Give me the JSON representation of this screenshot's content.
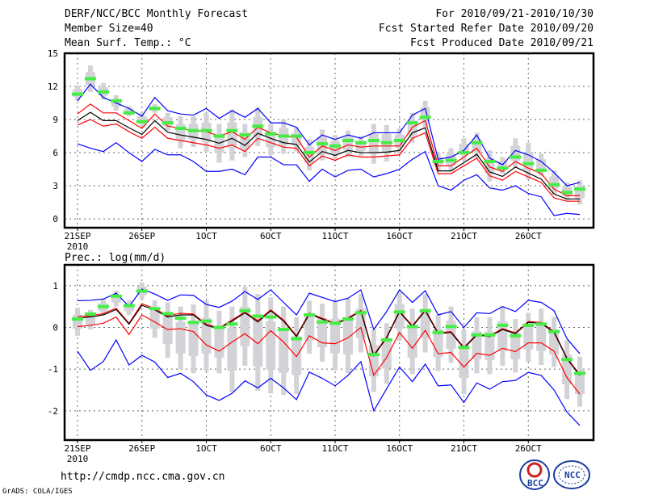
{
  "header": {
    "title": "DERF/NCC/BCC Monthly Forecast",
    "member": "Member Size=40",
    "variable": "Mean Surf. Temp.: °C",
    "period": "For 2010/09/21-2010/10/30",
    "refer": "Fcst Started Refer Date 2010/09/20",
    "produced": "Fcst Produced Date 2010/09/21"
  },
  "footer": {
    "url": "http://cmdp.ncc.cma.gov.cn",
    "grads": "GrADS: COLA/IGES",
    "logo1": "BCC",
    "logo2": "NCC"
  },
  "colors": {
    "ensemble_range": "#0000ff",
    "spread": "#ff0000",
    "mean": "#000000",
    "box": "#d3d3d7",
    "marker": "#44ee44",
    "grid": "#666666"
  },
  "chart_data": [
    {
      "type": "line",
      "title": "Mean Surf. Temp.: °C",
      "ylabel": "°C",
      "ylim": [
        -0.8,
        15
      ],
      "yticks": [
        0,
        3,
        6,
        9,
        12,
        15
      ],
      "xticks": [
        "21SEP",
        "26SEP",
        "1OCT",
        "6OCT",
        "11OCT",
        "16OCT",
        "21OCT",
        "26OCT"
      ],
      "xtick_sub": "2010",
      "grid": true,
      "mean": [
        8.9,
        9.65,
        8.9,
        8.9,
        8.25,
        7.65,
        8.9,
        7.85,
        7.6,
        7.4,
        7.2,
        6.85,
        7.3,
        6.65,
        7.75,
        7.3,
        6.9,
        6.75,
        5.15,
        6.1,
        5.75,
        6.2,
        6.0,
        6.0,
        6.05,
        6.2,
        7.8,
        8.25,
        4.35,
        4.35,
        5.1,
        5.85,
        4.25,
        3.85,
        4.7,
        4.15,
        3.6,
        2.25,
        1.8,
        1.8
      ],
      "upper_red": [
        9.5,
        10.4,
        9.6,
        9.6,
        8.9,
        8.2,
        9.5,
        8.4,
        8.2,
        8.0,
        7.9,
        7.5,
        7.9,
        7.2,
        8.3,
        7.8,
        7.5,
        7.4,
        5.6,
        6.6,
        6.2,
        6.7,
        6.5,
        6.6,
        6.6,
        6.6,
        8.3,
        8.9,
        4.8,
        4.8,
        5.6,
        6.4,
        4.7,
        4.3,
        5.2,
        4.6,
        4.1,
        2.7,
        2.1,
        2.1
      ],
      "lower_red": [
        8.5,
        9.0,
        8.4,
        8.6,
        7.9,
        7.3,
        8.3,
        7.3,
        7.1,
        6.9,
        6.7,
        6.4,
        6.7,
        6.1,
        7.3,
        6.9,
        6.5,
        6.4,
        4.8,
        5.7,
        5.3,
        5.8,
        5.6,
        5.6,
        5.7,
        5.8,
        7.3,
        7.8,
        4.1,
        4.1,
        4.8,
        5.5,
        3.9,
        3.5,
        4.3,
        3.8,
        3.3,
        1.9,
        1.6,
        1.6
      ],
      "upper_blue": [
        10.7,
        12.2,
        11.0,
        10.5,
        10.0,
        9.3,
        11.0,
        9.8,
        9.5,
        9.4,
        10.0,
        9.1,
        9.8,
        9.2,
        10.0,
        8.7,
        8.7,
        8.3,
        6.7,
        7.6,
        7.2,
        7.6,
        7.3,
        7.8,
        7.8,
        7.8,
        9.4,
        10.0,
        5.4,
        5.6,
        6.2,
        7.6,
        5.5,
        4.9,
        6.2,
        5.8,
        5.2,
        4.2,
        3.0,
        3.3
      ],
      "lower_blue": [
        6.8,
        6.4,
        6.1,
        6.9,
        6.0,
        5.2,
        6.3,
        5.8,
        5.8,
        5.2,
        4.3,
        4.3,
        4.5,
        4.0,
        5.6,
        5.6,
        4.9,
        4.9,
        3.4,
        4.5,
        3.8,
        4.4,
        4.5,
        3.8,
        4.1,
        4.5,
        5.4,
        6.1,
        3.0,
        2.6,
        3.5,
        4.0,
        2.8,
        2.6,
        3.0,
        2.3,
        2.0,
        0.3,
        0.5,
        0.4
      ],
      "marker": [
        11.3,
        12.7,
        11.5,
        10.7,
        9.6,
        8.8,
        10.0,
        8.7,
        8.2,
        8.0,
        8.0,
        7.5,
        8.0,
        7.6,
        8.4,
        7.7,
        7.5,
        7.5,
        6.0,
        6.8,
        6.6,
        7.1,
        6.9,
        7.1,
        6.9,
        7.1,
        8.7,
        9.2,
        5.2,
        5.3,
        6.0,
        6.9,
        5.2,
        4.6,
        5.6,
        5.0,
        4.4,
        3.1,
        2.4,
        2.7
      ],
      "box_hi": [
        12.1,
        13.9,
        12.3,
        11.2,
        10.2,
        9.6,
        10.4,
        9.6,
        9.3,
        9.3,
        9.6,
        8.6,
        9.9,
        8.6,
        10.1,
        8.6,
        9.0,
        8.3,
        7.2,
        8.1,
        7.6,
        8.0,
        7.5,
        8.6,
        8.5,
        8.2,
        9.6,
        10.7,
        6.0,
        6.4,
        7.3,
        7.8,
        6.2,
        5.6,
        7.3,
        6.9,
        5.9,
        4.4,
        3.3,
        3.5
      ],
      "box_lo": [
        10.7,
        11.5,
        10.8,
        9.8,
        9.3,
        8.4,
        9.6,
        8.0,
        6.4,
        6.5,
        6.1,
        5.1,
        5.3,
        5.6,
        6.6,
        5.8,
        5.9,
        6.1,
        4.4,
        5.3,
        5.4,
        5.6,
        5.7,
        5.0,
        5.2,
        5.9,
        6.9,
        8.3,
        4.4,
        4.3,
        5.3,
        5.5,
        3.4,
        4.1,
        4.6,
        3.6,
        3.9,
        2.2,
        1.7,
        1.3
      ]
    },
    {
      "type": "line",
      "title": "Prec.: log(mm/d)",
      "ylabel": "log(mm/d)",
      "ylim": [
        -2.7,
        1.5
      ],
      "yticks": [
        -2,
        -1,
        0,
        1
      ],
      "xticks": [
        "21SEP",
        "26SEP",
        "1OCT",
        "6OCT",
        "11OCT",
        "16OCT",
        "21OCT",
        "26OCT"
      ],
      "xtick_sub": "2010",
      "grid": true,
      "mean": [
        0.22,
        0.25,
        0.3,
        0.43,
        0.08,
        0.53,
        0.42,
        0.25,
        0.3,
        0.3,
        0.05,
        -0.03,
        0.15,
        0.35,
        0.13,
        0.4,
        0.15,
        -0.22,
        0.32,
        0.2,
        0.08,
        0.21,
        0.39,
        -0.68,
        -0.25,
        0.37,
        0.02,
        0.4,
        -0.15,
        -0.12,
        -0.5,
        -0.18,
        -0.22,
        -0.05,
        -0.15,
        0.12,
        0.1,
        -0.12,
        -0.75,
        -1.15
      ],
      "upper_red": [
        0.26,
        0.28,
        0.33,
        0.46,
        0.1,
        0.57,
        0.45,
        0.28,
        0.34,
        0.32,
        0.08,
        -0.01,
        0.18,
        0.37,
        0.16,
        0.42,
        0.18,
        -0.2,
        0.34,
        0.22,
        0.1,
        0.23,
        0.41,
        -0.66,
        -0.23,
        0.39,
        0.04,
        0.42,
        -0.13,
        -0.1,
        -0.48,
        -0.16,
        -0.2,
        -0.03,
        -0.13,
        0.14,
        0.12,
        -0.1,
        -0.73,
        -1.13
      ],
      "lower_red": [
        0.02,
        0.05,
        0.1,
        0.25,
        -0.17,
        0.3,
        0.13,
        -0.05,
        -0.03,
        -0.1,
        -0.42,
        -0.57,
        -0.35,
        -0.15,
        -0.39,
        -0.08,
        -0.35,
        -0.7,
        -0.2,
        -0.37,
        -0.39,
        -0.25,
        0.0,
        -1.15,
        -0.72,
        -0.12,
        -0.5,
        -0.07,
        -0.63,
        -0.6,
        -0.95,
        -0.62,
        -0.67,
        -0.5,
        -0.58,
        -0.37,
        -0.37,
        -0.57,
        -1.2,
        -1.6
      ],
      "upper_blue": [
        0.64,
        0.65,
        0.68,
        0.82,
        0.5,
        0.92,
        0.8,
        0.65,
        0.78,
        0.77,
        0.55,
        0.48,
        0.63,
        0.86,
        0.67,
        0.9,
        0.6,
        0.3,
        0.82,
        0.72,
        0.62,
        0.7,
        0.9,
        -0.05,
        0.38,
        0.9,
        0.6,
        0.88,
        0.3,
        0.38,
        0.0,
        0.35,
        0.33,
        0.5,
        0.38,
        0.65,
        0.6,
        0.4,
        -0.27,
        -0.63
      ],
      "lower_blue": [
        -0.57,
        -1.03,
        -0.82,
        -0.3,
        -0.9,
        -0.67,
        -0.83,
        -1.2,
        -1.1,
        -1.3,
        -1.62,
        -1.75,
        -1.58,
        -1.28,
        -1.45,
        -1.22,
        -1.45,
        -1.73,
        -1.07,
        -1.22,
        -1.4,
        -1.15,
        -0.82,
        -2.0,
        -1.47,
        -0.95,
        -1.3,
        -0.88,
        -1.4,
        -1.38,
        -1.8,
        -1.33,
        -1.48,
        -1.3,
        -1.27,
        -1.08,
        -1.15,
        -1.5,
        -2.03,
        -2.35
      ],
      "marker": [
        0.2,
        0.32,
        0.5,
        0.75,
        0.52,
        0.87,
        0.45,
        0.33,
        0.22,
        0.12,
        0.15,
        0.0,
        0.08,
        0.4,
        0.27,
        0.25,
        -0.05,
        -0.27,
        0.3,
        0.13,
        0.1,
        0.2,
        0.35,
        -0.65,
        -0.3,
        0.37,
        0.02,
        0.4,
        -0.12,
        0.02,
        -0.48,
        -0.18,
        -0.18,
        0.05,
        -0.2,
        0.05,
        0.08,
        -0.1,
        -0.77,
        -1.1
      ],
      "box_hi": [
        0.47,
        0.42,
        0.67,
        0.88,
        0.65,
        1.08,
        0.65,
        0.6,
        0.5,
        0.55,
        0.65,
        0.4,
        0.5,
        0.97,
        0.8,
        0.72,
        0.5,
        0.25,
        0.64,
        0.57,
        0.62,
        0.7,
        0.8,
        -0.05,
        0.1,
        0.85,
        0.45,
        0.8,
        0.3,
        0.5,
        -0.05,
        0.24,
        0.24,
        0.5,
        0.2,
        0.35,
        0.45,
        0.25,
        -0.3,
        -0.7
      ],
      "box_lo": [
        -0.2,
        -0.05,
        0.3,
        0.5,
        0.3,
        0.67,
        -0.25,
        -0.73,
        -1.0,
        -1.1,
        -1.05,
        -1.1,
        -1.55,
        -0.92,
        -1.52,
        -1.58,
        -1.62,
        -1.6,
        -0.63,
        -0.82,
        -1.03,
        -1.1,
        -0.6,
        -1.55,
        -1.35,
        -0.32,
        -1.12,
        -0.6,
        -1.05,
        -0.85,
        -1.6,
        -1.1,
        -1.12,
        -0.92,
        -1.08,
        -0.82,
        -0.9,
        -0.95,
        -1.72,
        -1.9
      ]
    }
  ]
}
